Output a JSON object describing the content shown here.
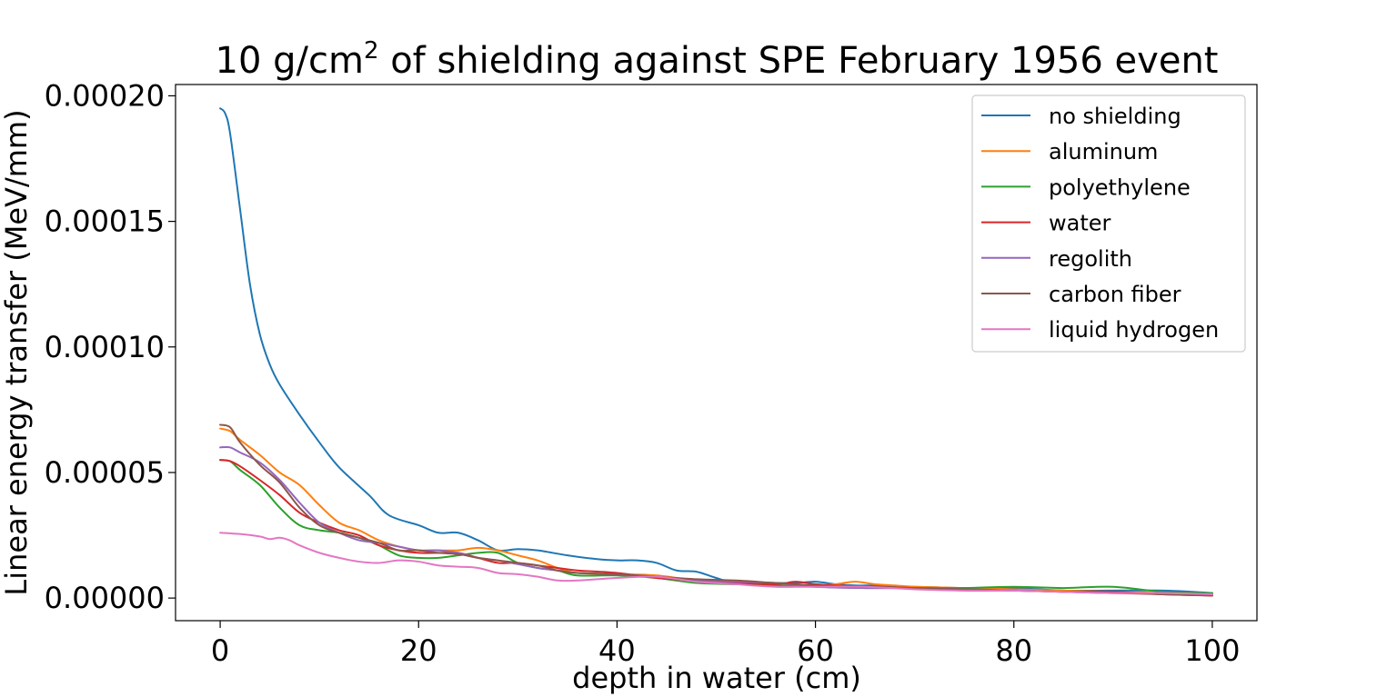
{
  "chart_data": {
    "type": "line",
    "title": "10 g/cm",
    "title_superscript": "2",
    "title_suffix": " of shielding against SPE February 1956 event",
    "xlabel": "depth in water (cm)",
    "ylabel": "Linear energy transfer (MeV/mm)",
    "xlim": [
      -4.5,
      104.5
    ],
    "ylim": [
      -9e-06,
      0.0002045
    ],
    "xticks": [
      0,
      20,
      40,
      60,
      80,
      100
    ],
    "xtick_labels": [
      "0",
      "20",
      "40",
      "60",
      "80",
      "100"
    ],
    "yticks": [
      0,
      5e-05,
      0.0001,
      0.00015,
      0.0002
    ],
    "ytick_labels": [
      "0.00000",
      "0.00005",
      "0.00010",
      "0.00015",
      "0.00020"
    ],
    "grid": false,
    "legend_position": "top-right",
    "series": [
      {
        "name": "no shielding",
        "color": "#1f77b4",
        "x": [
          0,
          0.5,
          1,
          2,
          3,
          4,
          5,
          6,
          8,
          10,
          12,
          15,
          17,
          20,
          22,
          24,
          26,
          28,
          30,
          32,
          35,
          38,
          40,
          42,
          44,
          46,
          48,
          50,
          52,
          55,
          58,
          60,
          62,
          64,
          66,
          68,
          70,
          75,
          80,
          85,
          90,
          95,
          98,
          100
        ],
        "y": [
          0.000195,
          0.000193,
          0.000185,
          0.000155,
          0.000125,
          0.000105,
          9.3e-05,
          8.5e-05,
          7.3e-05,
          6.2e-05,
          5.2e-05,
          4.1e-05,
          3.3e-05,
          2.9e-05,
          2.6e-05,
          2.6e-05,
          2.3e-05,
          1.9e-05,
          1.95e-05,
          1.9e-05,
          1.7e-05,
          1.55e-05,
          1.5e-05,
          1.5e-05,
          1.4e-05,
          1.1e-05,
          1.05e-05,
          8e-06,
          6e-06,
          6e-06,
          6e-06,
          6.5e-06,
          5.5e-06,
          5e-06,
          5e-06,
          4.5e-06,
          4.5e-06,
          4e-06,
          4e-06,
          3e-06,
          3e-06,
          3e-06,
          2.5e-06,
          2e-06
        ]
      },
      {
        "name": "aluminum",
        "color": "#ff7f0e",
        "x": [
          0,
          1,
          2,
          4,
          6,
          8,
          10,
          12,
          14,
          16,
          18,
          20,
          22,
          24,
          26,
          28,
          30,
          32,
          34,
          36,
          40,
          44,
          48,
          52,
          56,
          60,
          62,
          64,
          66,
          68,
          70,
          75,
          80,
          85,
          90,
          95,
          100
        ],
        "y": [
          6.75e-05,
          6.65e-05,
          6.3e-05,
          5.7e-05,
          5e-05,
          4.5e-05,
          3.7e-05,
          3e-05,
          2.7e-05,
          2.3e-05,
          2.05e-05,
          1.9e-05,
          1.9e-05,
          1.9e-05,
          2e-05,
          1.9e-05,
          1.7e-05,
          1.5e-05,
          1.2e-05,
          1e-05,
          9.5e-06,
          9e-06,
          7e-06,
          6e-06,
          5.5e-06,
          5e-06,
          5.5e-06,
          6.5e-06,
          5.5e-06,
          5e-06,
          4.5e-06,
          4e-06,
          3.5e-06,
          3e-06,
          2.5e-06,
          2e-06,
          1e-06
        ]
      },
      {
        "name": "polyethylene",
        "color": "#2ca02c",
        "x": [
          0,
          1,
          2,
          4,
          6,
          8,
          10,
          12,
          14,
          16,
          18,
          20,
          22,
          24,
          26,
          28,
          30,
          32,
          34,
          36,
          40,
          44,
          48,
          52,
          56,
          60,
          65,
          70,
          75,
          80,
          85,
          90,
          95,
          100
        ],
        "y": [
          5.5e-05,
          5.45e-05,
          5.1e-05,
          4.5e-05,
          3.6e-05,
          2.9e-05,
          2.7e-05,
          2.6e-05,
          2.4e-05,
          2.1e-05,
          1.7e-05,
          1.6e-05,
          1.6e-05,
          1.7e-05,
          1.8e-05,
          1.8e-05,
          1.4e-05,
          1.2e-05,
          1.1e-05,
          9e-06,
          9e-06,
          8e-06,
          6e-06,
          5.5e-06,
          5e-06,
          4.5e-06,
          4e-06,
          4e-06,
          4e-06,
          4.5e-06,
          4e-06,
          4.5e-06,
          2.5e-06,
          2e-06
        ]
      },
      {
        "name": "water",
        "color": "#d62728",
        "x": [
          0,
          1,
          2,
          4,
          6,
          8,
          10,
          12,
          14,
          16,
          18,
          20,
          22,
          24,
          26,
          28,
          30,
          32,
          34,
          36,
          40,
          44,
          48,
          52,
          56,
          58,
          60,
          62,
          66,
          70,
          75,
          80,
          85,
          90,
          95,
          100
        ],
        "y": [
          5.5e-05,
          5.45e-05,
          5.25e-05,
          4.7e-05,
          4.1e-05,
          3.4e-05,
          3e-05,
          2.7e-05,
          2.5e-05,
          2.1e-05,
          1.9e-05,
          1.8e-05,
          1.8e-05,
          1.8e-05,
          1.6e-05,
          1.4e-05,
          1.4e-05,
          1.3e-05,
          1.2e-05,
          1.1e-05,
          1e-05,
          8e-06,
          7e-06,
          6e-06,
          5.5e-06,
          6.5e-06,
          5.5e-06,
          5e-06,
          4.5e-06,
          4e-06,
          3e-06,
          3e-06,
          2.5e-06,
          2.5e-06,
          1.5e-06,
          1e-06
        ]
      },
      {
        "name": "regolith",
        "color": "#9467bd",
        "x": [
          0,
          1,
          2,
          4,
          6,
          8,
          10,
          12,
          14,
          16,
          18,
          20,
          22,
          24,
          26,
          28,
          30,
          32,
          34,
          36,
          40,
          44,
          48,
          52,
          56,
          60,
          65,
          70,
          75,
          80,
          85,
          90,
          95,
          100
        ],
        "y": [
          6e-05,
          6e-05,
          5.8e-05,
          5.4e-05,
          4.7e-05,
          3.8e-05,
          3e-05,
          2.6e-05,
          2.3e-05,
          2.2e-05,
          2.05e-05,
          1.9e-05,
          1.9e-05,
          1.8e-05,
          1.6e-05,
          1.5e-05,
          1.35e-05,
          1.2e-05,
          1.1e-05,
          1e-05,
          9.5e-06,
          8.5e-06,
          7e-06,
          6.5e-06,
          6e-06,
          4.5e-06,
          4e-06,
          4e-06,
          3.5e-06,
          3e-06,
          2.5e-06,
          2e-06,
          2e-06,
          1.5e-06
        ]
      },
      {
        "name": "carbon fiber",
        "color": "#8c564b",
        "x": [
          0,
          1,
          2,
          4,
          6,
          8,
          10,
          12,
          14,
          16,
          18,
          20,
          22,
          24,
          26,
          28,
          30,
          32,
          34,
          36,
          40,
          44,
          48,
          52,
          56,
          60,
          65,
          70,
          75,
          80,
          85,
          90,
          95,
          100
        ],
        "y": [
          6.9e-05,
          6.8e-05,
          6.2e-05,
          5.3e-05,
          4.6e-05,
          3.6e-05,
          2.9e-05,
          2.6e-05,
          2.4e-05,
          2.2e-05,
          1.9e-05,
          1.9e-05,
          1.8e-05,
          1.75e-05,
          1.6e-05,
          1.5e-05,
          1.4e-05,
          1.3e-05,
          1.1e-05,
          1e-05,
          9.5e-06,
          8.5e-06,
          7.5e-06,
          7e-06,
          6e-06,
          5e-06,
          4.5e-06,
          4e-06,
          3.5e-06,
          3e-06,
          2.5e-06,
          2e-06,
          1.5e-06,
          1e-06
        ]
      },
      {
        "name": "liquid hydrogen",
        "color": "#e377c2",
        "x": [
          0,
          2,
          4,
          5,
          6,
          7,
          8,
          10,
          12,
          14,
          16,
          18,
          20,
          22,
          24,
          26,
          28,
          30,
          32,
          34,
          36,
          40,
          44,
          48,
          52,
          56,
          60,
          65,
          70,
          75,
          80,
          85,
          90,
          95,
          100
        ],
        "y": [
          2.6e-05,
          2.55e-05,
          2.45e-05,
          2.35e-05,
          2.4e-05,
          2.3e-05,
          2.1e-05,
          1.8e-05,
          1.6e-05,
          1.45e-05,
          1.4e-05,
          1.5e-05,
          1.45e-05,
          1.3e-05,
          1.25e-05,
          1.2e-05,
          1e-05,
          9.5e-06,
          8.5e-06,
          7e-06,
          7e-06,
          8e-06,
          8.5e-06,
          6.5e-06,
          5.5e-06,
          4.5e-06,
          4.5e-06,
          4.5e-06,
          3.5e-06,
          3e-06,
          3e-06,
          2.5e-06,
          2e-06,
          2e-06,
          1.5e-06
        ]
      }
    ]
  }
}
